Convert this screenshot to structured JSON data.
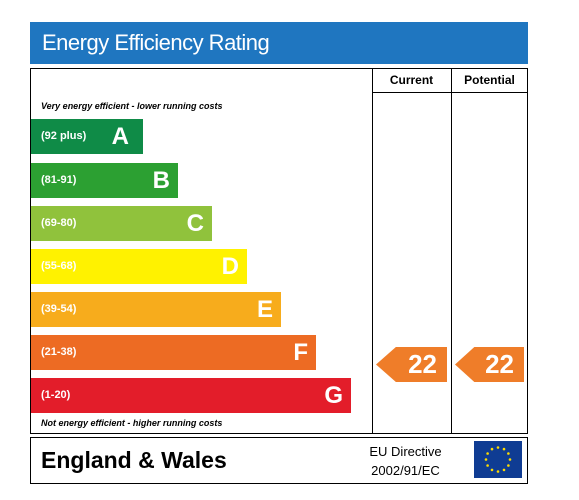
{
  "header": {
    "title": "Energy Efficiency Rating"
  },
  "columns": {
    "current": "Current",
    "potential": "Potential"
  },
  "notes": {
    "top": "Very energy efficient - lower running costs",
    "bottom": "Not energy efficient - higher running costs"
  },
  "bands": [
    {
      "range": "(92 plus)",
      "letter": "A",
      "color": "#0f8b47"
    },
    {
      "range": "(81-91)",
      "letter": "B",
      "color": "#2ca032"
    },
    {
      "range": "(69-80)",
      "letter": "C",
      "color": "#90c23c"
    },
    {
      "range": "(55-68)",
      "letter": "D",
      "color": "#fff200"
    },
    {
      "range": "(39-54)",
      "letter": "E",
      "color": "#f7ac1c"
    },
    {
      "range": "(21-38)",
      "letter": "F",
      "color": "#ed6b23"
    },
    {
      "range": "(1-20)",
      "letter": "G",
      "color": "#e31d2a"
    }
  ],
  "ratings": {
    "current": {
      "value": "22",
      "band": "F",
      "color": "#ef7d29"
    },
    "potential": {
      "value": "22",
      "band": "F",
      "color": "#ef7d29"
    }
  },
  "footer": {
    "region": "England & Wales",
    "directive_line1": "EU Directive",
    "directive_line2": "2002/91/EC",
    "flag": "eu-flag-icon"
  }
}
